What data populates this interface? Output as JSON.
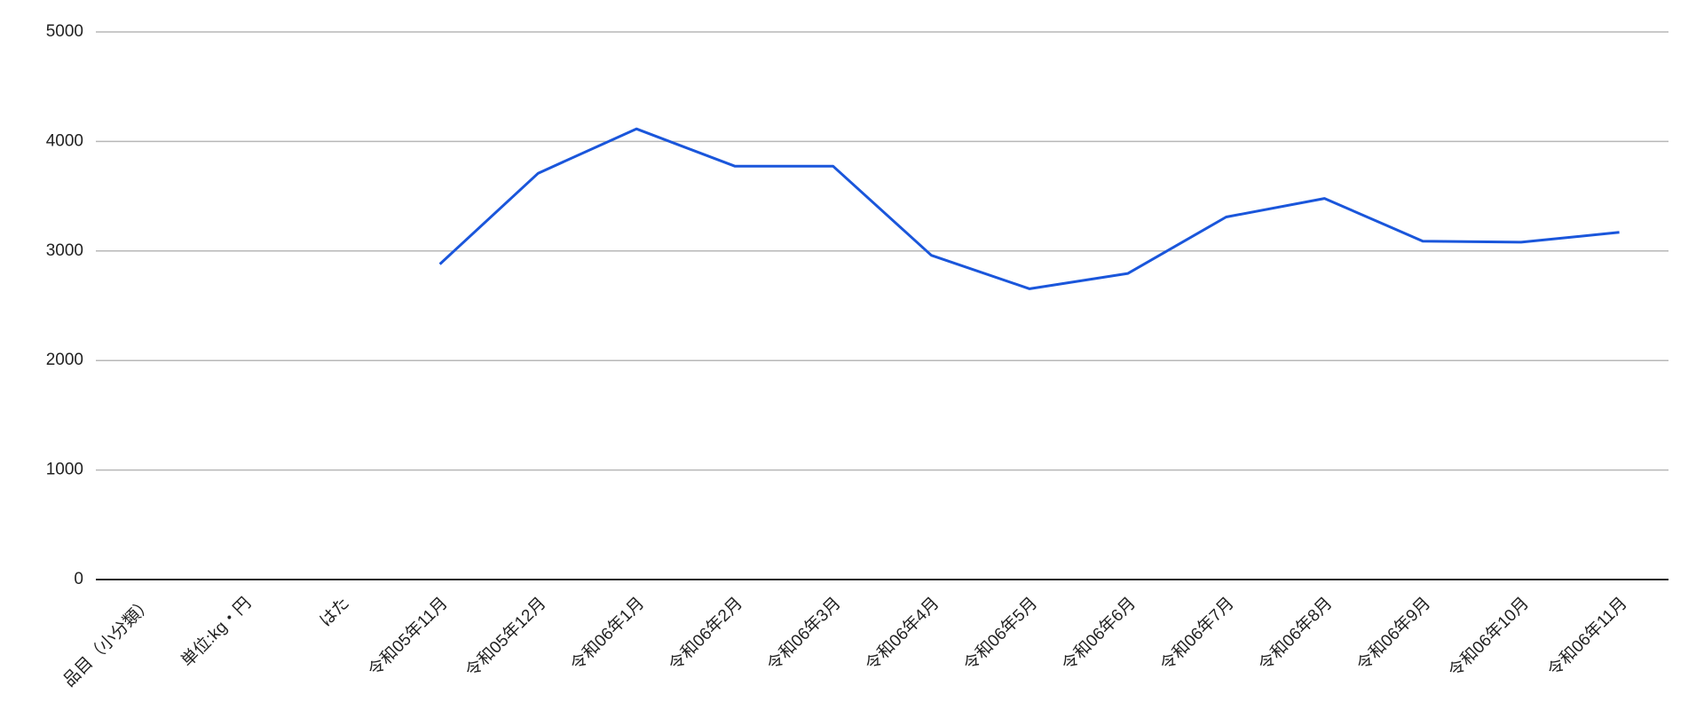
{
  "chart_data": {
    "type": "line",
    "categories": [
      "品目（小分類）",
      "単位:kg・円",
      "はた",
      "令和05年11月",
      "令和05年12月",
      "令和06年1月",
      "令和06年2月",
      "令和06年3月",
      "令和06年4月",
      "令和06年5月",
      "令和06年6月",
      "令和06年7月",
      "令和06年8月",
      "令和06年9月",
      "令和06年10月",
      "令和06年11月"
    ],
    "series": [
      {
        "color": "#1a56db",
        "values": [
          null,
          null,
          null,
          2880,
          3710,
          4115,
          3775,
          3775,
          2960,
          2655,
          2795,
          3310,
          3480,
          3090,
          3080,
          3170
        ]
      }
    ],
    "ylim": [
      0,
      5000
    ],
    "yticks": [
      0,
      1000,
      2000,
      3000,
      4000,
      5000
    ],
    "grid": true
  }
}
